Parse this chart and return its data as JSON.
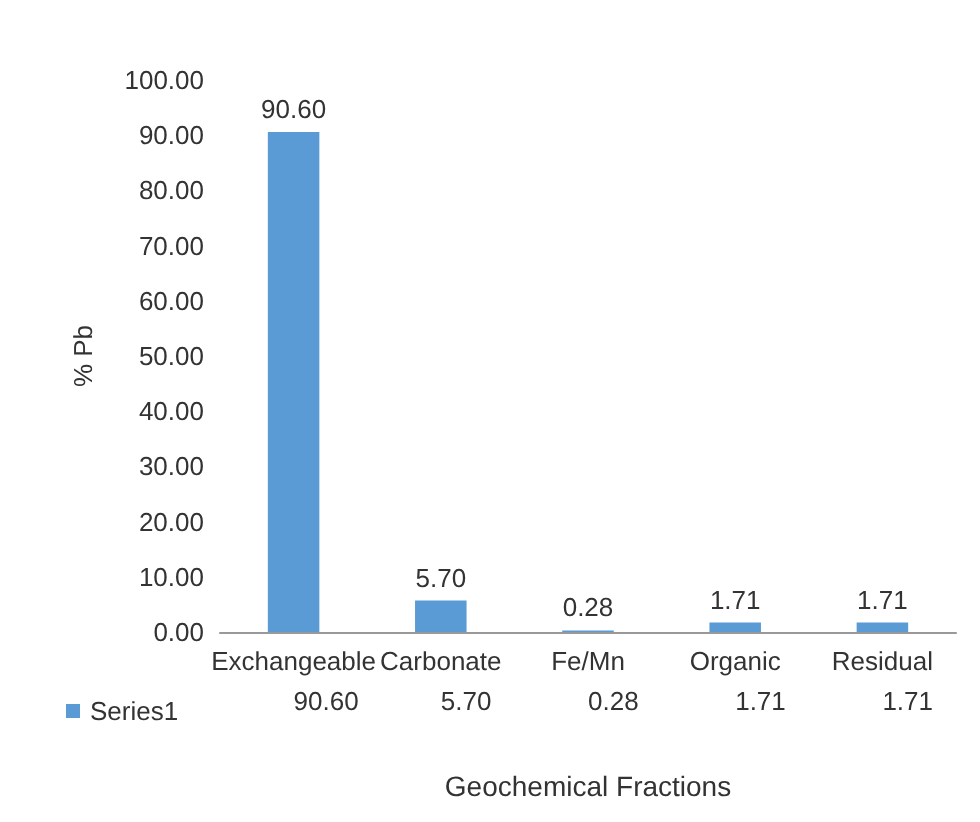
{
  "chart_data": {
    "type": "bar",
    "xlabel": "Geochemical Fractions",
    "ylabel": "% Pb",
    "categories": [
      "Exchangeable",
      "Carbonate",
      "Fe/Mn",
      "Organic",
      "Residual"
    ],
    "series": [
      {
        "name": "Series1",
        "color": "#5b9bd5",
        "values": [
          90.6,
          5.7,
          0.28,
          1.71,
          1.71
        ],
        "value_labels": [
          "90.60",
          "5.70",
          "0.28",
          "1.71",
          "1.71"
        ]
      }
    ],
    "ylim": [
      0,
      100
    ],
    "yticks": [
      {
        "value": 0,
        "label": "0.00"
      },
      {
        "value": 10,
        "label": "10.00"
      },
      {
        "value": 20,
        "label": "20.00"
      },
      {
        "value": 30,
        "label": "30.00"
      },
      {
        "value": 40,
        "label": "40.00"
      },
      {
        "value": 50,
        "label": "50.00"
      },
      {
        "value": 60,
        "label": "60.00"
      },
      {
        "value": 70,
        "label": "70.00"
      },
      {
        "value": 80,
        "label": "80.00"
      },
      {
        "value": 90,
        "label": "90.00"
      },
      {
        "value": 100,
        "label": "100.00"
      }
    ],
    "grid": false,
    "legend": "bottom left"
  }
}
